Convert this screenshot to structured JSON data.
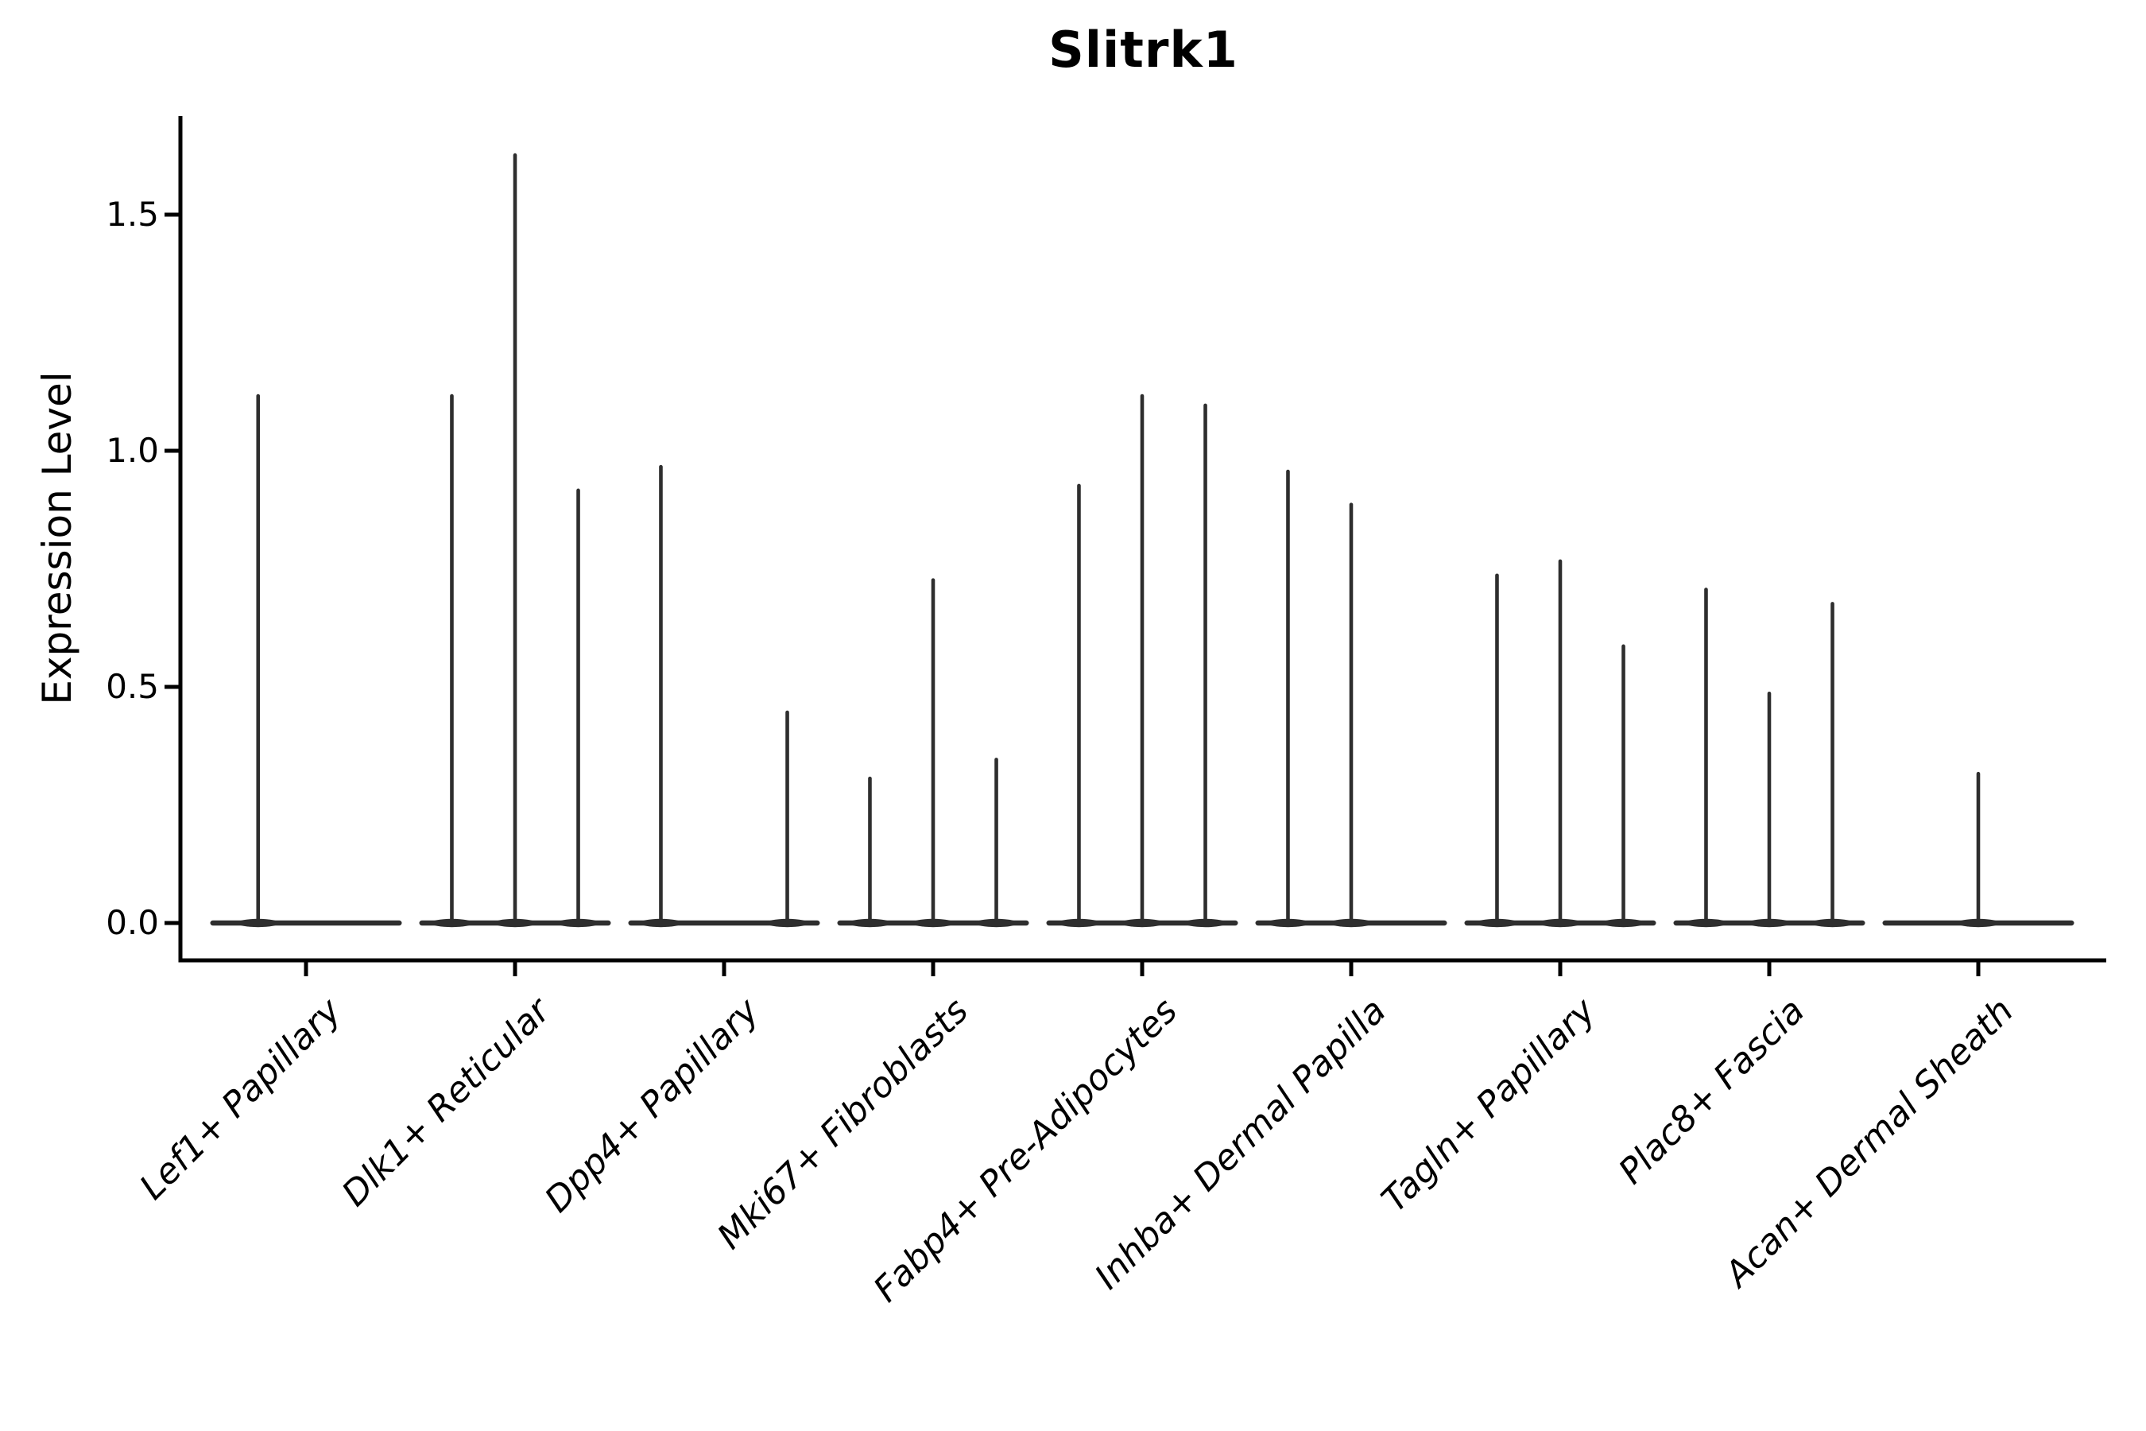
{
  "chart_data": {
    "type": "violin",
    "title": "Slitrk1",
    "ylabel": "Expression Level",
    "xlabel": "",
    "grid": false,
    "legend_position": "none",
    "yticks": [
      {
        "label": "0.0",
        "value": 0.0
      },
      {
        "label": "0.5",
        "value": 0.5
      },
      {
        "label": "1.0",
        "value": 1.0
      },
      {
        "label": "1.5",
        "value": 1.5
      }
    ],
    "ylim": [
      -0.08,
      1.71
    ],
    "x_label_rotation_deg": 45,
    "note": "Violin plot with near-degenerate violins: each category shows a flat baseline at expression 0 with thin vertical spikes; spike offset is fraction of category width from category center, max is the spike top expression value",
    "categories": [
      {
        "label": "Lef1+ Papillary",
        "spikes": [
          {
            "offset": -0.25,
            "max": 1.12
          }
        ]
      },
      {
        "label": "Dlk1+ Reticular",
        "spikes": [
          {
            "offset": -0.33,
            "max": 1.12
          },
          {
            "offset": 0,
            "max": 1.63
          },
          {
            "offset": 0.33,
            "max": 0.92
          }
        ]
      },
      {
        "label": "Dpp4+ Papillary",
        "spikes": [
          {
            "offset": -0.33,
            "max": 0.97
          },
          {
            "offset": 0.33,
            "max": 0.45
          }
        ]
      },
      {
        "label": "Mki67+ Fibroblasts",
        "spikes": [
          {
            "offset": -0.33,
            "max": 0.31
          },
          {
            "offset": 0,
            "max": 0.73
          },
          {
            "offset": 0.33,
            "max": 0.35
          }
        ]
      },
      {
        "label": "Fabp4+ Pre-Adipocytes",
        "spikes": [
          {
            "offset": -0.33,
            "max": 0.93
          },
          {
            "offset": 0,
            "max": 1.12
          },
          {
            "offset": 0.33,
            "max": 1.1
          }
        ]
      },
      {
        "label": "Inhba+ Dermal Papilla",
        "spikes": [
          {
            "offset": -0.33,
            "max": 0.96
          },
          {
            "offset": 0,
            "max": 0.89
          }
        ]
      },
      {
        "label": "Tagln+ Papillary",
        "spikes": [
          {
            "offset": -0.33,
            "max": 0.74
          },
          {
            "offset": 0,
            "max": 0.77
          },
          {
            "offset": 0.33,
            "max": 0.59
          }
        ]
      },
      {
        "label": "Plac8+ Fascia",
        "spikes": [
          {
            "offset": -0.33,
            "max": 0.71
          },
          {
            "offset": 0,
            "max": 0.49
          },
          {
            "offset": 0.33,
            "max": 0.68
          }
        ]
      },
      {
        "label": "Acan+ Dermal Sheath",
        "spikes": [
          {
            "offset": 0,
            "max": 0.32
          }
        ]
      }
    ],
    "colors": {
      "violin_line": "#2e2e2e",
      "axis": "#000000",
      "text": "#000000",
      "background": "#ffffff"
    }
  }
}
